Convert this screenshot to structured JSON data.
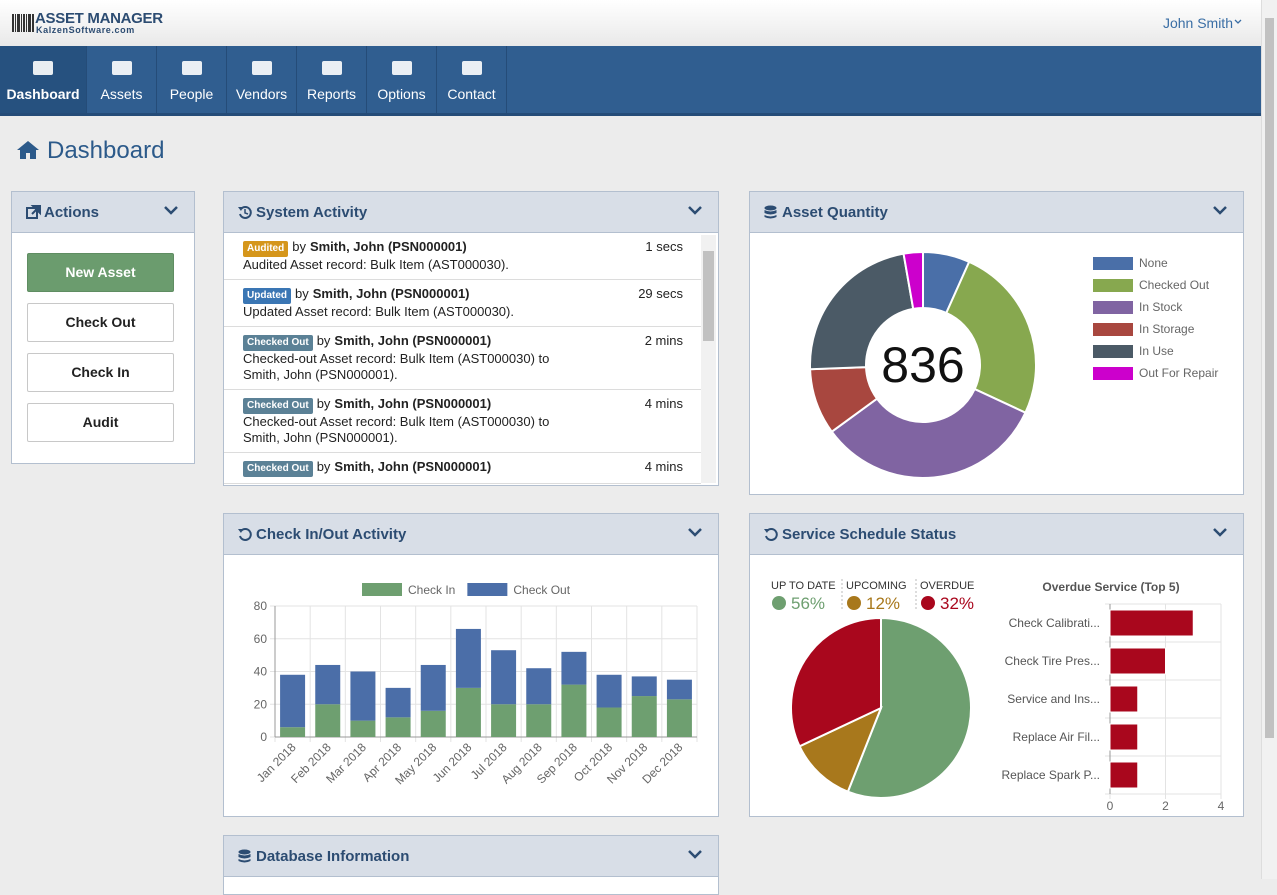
{
  "header": {
    "logo_title": "ASSET MANAGER",
    "logo_subtitle": "KalzenSoftware.com",
    "user": "John Smith"
  },
  "nav": {
    "items": [
      "Dashboard",
      "Assets",
      "People",
      "Vendors",
      "Reports",
      "Options",
      "Contact"
    ],
    "active": 0
  },
  "page_title": "Dashboard",
  "actions": {
    "title": "Actions",
    "buttons": [
      "New Asset",
      "Check Out",
      "Check In",
      "Audit"
    ]
  },
  "activity": {
    "title": "System Activity",
    "items": [
      {
        "badge": "Audited",
        "badge_color": "#d5961b",
        "by": "by",
        "user": "Smith, John (PSN000001)",
        "text": "Audited Asset record: Bulk Item (AST000030).",
        "time": "1 secs"
      },
      {
        "badge": "Updated",
        "badge_color": "#3a76b4",
        "by": "by",
        "user": "Smith, John (PSN000001)",
        "text": "Updated Asset record: Bulk Item (AST000030).",
        "time": "29 secs"
      },
      {
        "badge": "Checked Out",
        "badge_color": "#5b8196",
        "by": "by",
        "user": "Smith, John (PSN000001)",
        "text": "Checked-out Asset record: Bulk Item (AST000030) to Smith, John (PSN000001).",
        "time": "2 mins"
      },
      {
        "badge": "Checked Out",
        "badge_color": "#5b8196",
        "by": "by",
        "user": "Smith, John (PSN000001)",
        "text": "Checked-out Asset record: Bulk Item (AST000030) to Smith, John (PSN000001).",
        "time": "4 mins"
      },
      {
        "badge": "Checked Out",
        "badge_color": "#5b8196",
        "by": "by",
        "user": "Smith, John (PSN000001)",
        "time": "4 mins"
      }
    ]
  },
  "panels": {
    "asset_quantity": "Asset Quantity",
    "check_activity": "Check In/Out Activity",
    "service": "Service Schedule Status",
    "database": "Database Information"
  },
  "chart_data": [
    {
      "type": "donut",
      "center_label": 836,
      "categories": [
        "None",
        "Checked Out",
        "In Stock",
        "In Storage",
        "In Use",
        "Out For Repair"
      ],
      "values": [
        56,
        211,
        276,
        79,
        191,
        23
      ],
      "colors": [
        "#4a6fa8",
        "#87a84f",
        "#8064a2",
        "#a8473f",
        "#4b5a66",
        "#cc00cc"
      ],
      "legend": "right"
    },
    {
      "type": "stacked_bar",
      "categories": [
        "Jan 2018",
        "Feb 2018",
        "Mar 2018",
        "Apr 2018",
        "May 2018",
        "Jun 2018",
        "Jul 2018",
        "Aug 2018",
        "Sep 2018",
        "Oct 2018",
        "Nov 2018",
        "Dec 2018"
      ],
      "series": [
        {
          "name": "Check In",
          "color": "#6e9f70",
          "values": [
            6,
            20,
            10,
            12,
            16,
            30,
            20,
            20,
            32,
            18,
            25,
            23
          ]
        },
        {
          "name": "Check Out",
          "color": "#4b6ea8",
          "values": [
            32,
            24,
            30,
            18,
            28,
            36,
            33,
            22,
            20,
            20,
            12,
            12
          ]
        }
      ],
      "ylim": [
        0,
        80
      ],
      "yticks": [
        0,
        20,
        40,
        60,
        80
      ],
      "grid": true,
      "legend": "top"
    },
    {
      "type": "pie",
      "categories": [
        "UP TO DATE",
        "UPCOMING",
        "OVERDUE"
      ],
      "values": [
        56,
        12,
        32
      ],
      "value_labels": [
        "56%",
        "12%",
        "32%"
      ],
      "colors": [
        "#6e9f70",
        "#a8781c",
        "#a9071d"
      ]
    },
    {
      "type": "hbar",
      "title": "Overdue Service (Top 5)",
      "categories": [
        "Check Calibrati...",
        "Check Tire Pres...",
        "Service and Ins...",
        "Replace Air Fil...",
        "Replace Spark P..."
      ],
      "values": [
        3,
        2,
        1,
        1,
        1
      ],
      "color": "#a9071d",
      "xlim": [
        0,
        4
      ],
      "xticks": [
        0,
        2,
        4
      ],
      "grid": true
    }
  ]
}
